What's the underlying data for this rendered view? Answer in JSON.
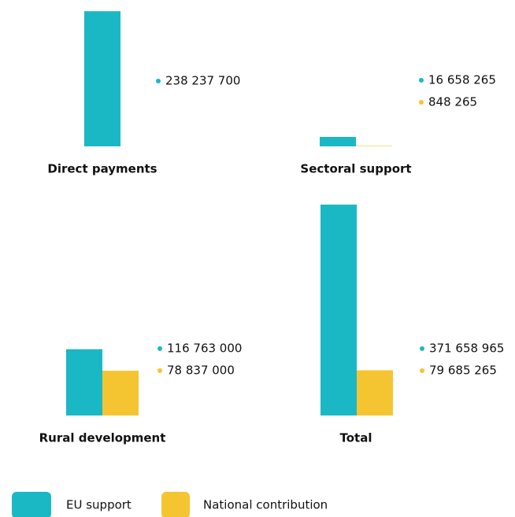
{
  "chart_data": [
    {
      "type": "bar",
      "title": "Direct payments",
      "series": [
        {
          "name": "EU support",
          "color": "#1ab8c4",
          "values": [
            238237700
          ],
          "value_labels": [
            "238 237 700"
          ]
        }
      ]
    },
    {
      "type": "bar",
      "title": "Sectoral support",
      "series": [
        {
          "name": "EU support",
          "color": "#1ab8c4",
          "values": [
            16658265
          ],
          "value_labels": [
            "16 658 265"
          ]
        },
        {
          "name": "National contribution",
          "color": "#f5c531",
          "values": [
            848265
          ],
          "value_labels": [
            "848 265"
          ]
        }
      ]
    },
    {
      "type": "bar",
      "title": "Rural development",
      "series": [
        {
          "name": "EU support",
          "color": "#1ab8c4",
          "values": [
            116763000
          ],
          "value_labels": [
            "116 763 000"
          ]
        },
        {
          "name": "National contribution",
          "color": "#f5c531",
          "values": [
            78837000
          ],
          "value_labels": [
            "78 837 000"
          ]
        }
      ]
    },
    {
      "type": "bar",
      "title": "Total",
      "series": [
        {
          "name": "EU support",
          "color": "#1ab8c4",
          "values": [
            371658965
          ],
          "value_labels": [
            "371 658 965"
          ]
        },
        {
          "name": "National contribution",
          "color": "#f5c531",
          "values": [
            79685265
          ],
          "value_labels": [
            "79 685 265"
          ]
        }
      ]
    }
  ]
}
